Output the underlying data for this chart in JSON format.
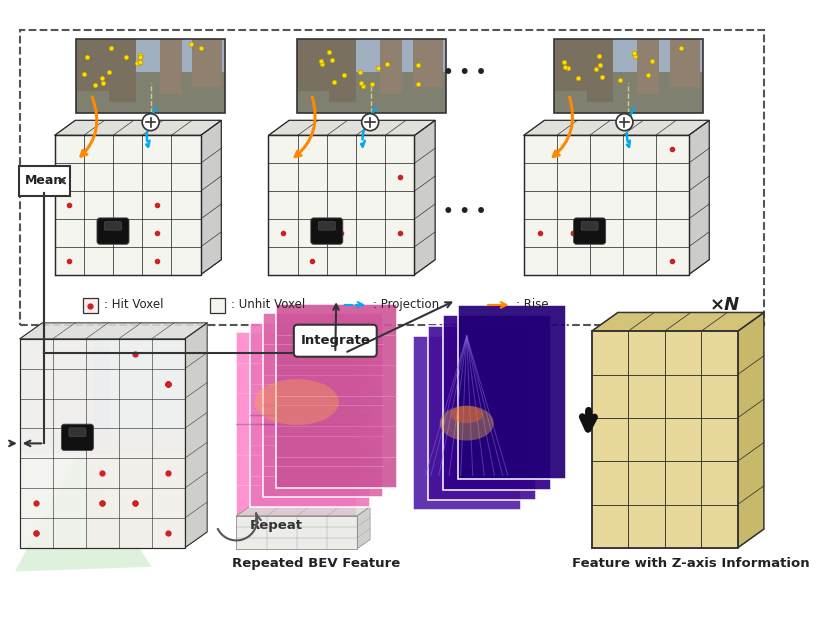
{
  "bg_color": "#ffffff",
  "fig_width": 8.27,
  "fig_height": 6.4,
  "dpi": 100,
  "mean_label": "Mean",
  "integrate_label": "Integrate",
  "repeat_label": "Repeat",
  "bev_label": "Repeated BEV Feature",
  "zaxis_label": "Feature with Z-axis Information",
  "xN_label": "×N",
  "legend_hitvoxel": ": Hit Voxel",
  "legend_unhitvoxel": ": Unhit Voxel",
  "legend_projection": ": Projection",
  "legend_rise": ": Rise",
  "arrow_blue": "#00aaee",
  "arrow_orange": "#ff8800",
  "dot_yellow": "#ffdd00",
  "voxel_face": "#f5f5f0",
  "voxel_edge": "#2a2a2a",
  "voxel_top": "#e0e0dc",
  "voxel_side": "#ccccca",
  "output_face": "#e8d89a",
  "output_top": "#d4c47a",
  "output_side": "#c8b86a"
}
